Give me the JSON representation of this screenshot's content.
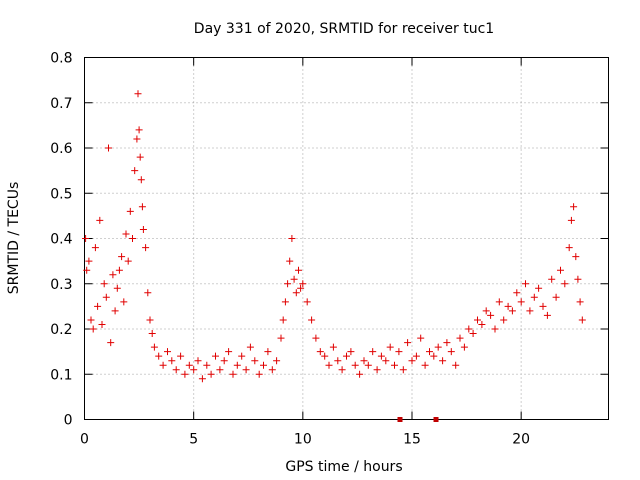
{
  "chart_data": {
    "type": "scatter",
    "title": "Day 331 of 2020, SRMTID for receiver tuc1",
    "xlabel": "GPS time / hours",
    "ylabel": "SRMTID / TECUs",
    "xlim": [
      0,
      24
    ],
    "ylim": [
      0,
      0.8
    ],
    "xticks": [
      "0",
      "5",
      "10",
      "15",
      "20"
    ],
    "yticks": [
      "0",
      "0.1",
      "0.2",
      "0.3",
      "0.4",
      "0.5",
      "0.6",
      "0.7",
      "0.8"
    ],
    "grid": true,
    "marker": "+",
    "color": "#e00000",
    "series": [
      {
        "name": "SRMTID tuc1",
        "x": [
          0.05,
          0.1,
          0.2,
          0.3,
          0.4,
          0.5,
          0.6,
          0.7,
          0.8,
          0.9,
          1.0,
          1.1,
          1.2,
          1.3,
          1.4,
          1.5,
          1.6,
          1.7,
          1.8,
          1.9,
          2.0,
          2.1,
          2.2,
          2.3,
          2.4,
          2.45,
          2.5,
          2.55,
          2.6,
          2.65,
          2.7,
          2.8,
          2.9,
          3.0,
          3.1,
          3.2,
          3.4,
          3.6,
          3.8,
          4.0,
          4.2,
          4.4,
          4.6,
          4.8,
          5.0,
          5.2,
          5.4,
          5.6,
          5.8,
          6.0,
          6.2,
          6.4,
          6.6,
          6.8,
          7.0,
          7.2,
          7.4,
          7.6,
          7.8,
          8.0,
          8.2,
          8.4,
          8.6,
          8.8,
          9.0,
          9.1,
          9.2,
          9.3,
          9.4,
          9.5,
          9.6,
          9.7,
          9.8,
          9.9,
          10.0,
          10.2,
          10.4,
          10.6,
          10.8,
          11.0,
          11.2,
          11.4,
          11.6,
          11.8,
          12.0,
          12.2,
          12.4,
          12.6,
          12.8,
          13.0,
          13.2,
          13.4,
          13.6,
          13.8,
          14.0,
          14.2,
          14.4,
          14.6,
          14.8,
          15.0,
          15.2,
          15.4,
          15.6,
          15.8,
          16.0,
          16.2,
          16.4,
          16.6,
          16.8,
          17.0,
          17.2,
          17.4,
          17.6,
          17.8,
          18.0,
          18.2,
          18.4,
          18.6,
          18.8,
          19.0,
          19.2,
          19.4,
          19.6,
          19.8,
          20.0,
          20.2,
          20.4,
          20.6,
          20.8,
          21.0,
          21.2,
          21.4,
          21.6,
          21.8,
          22.0,
          22.2,
          22.3,
          22.4,
          22.5,
          22.6,
          22.7,
          22.8
        ],
        "y": [
          0.4,
          0.33,
          0.35,
          0.22,
          0.2,
          0.38,
          0.25,
          0.44,
          0.21,
          0.3,
          0.27,
          0.6,
          0.17,
          0.32,
          0.24,
          0.29,
          0.33,
          0.36,
          0.26,
          0.41,
          0.35,
          0.46,
          0.4,
          0.55,
          0.62,
          0.72,
          0.64,
          0.58,
          0.53,
          0.47,
          0.42,
          0.38,
          0.28,
          0.22,
          0.19,
          0.16,
          0.14,
          0.12,
          0.15,
          0.13,
          0.11,
          0.14,
          0.1,
          0.12,
          0.11,
          0.13,
          0.09,
          0.12,
          0.1,
          0.14,
          0.11,
          0.13,
          0.15,
          0.1,
          0.12,
          0.14,
          0.11,
          0.16,
          0.13,
          0.1,
          0.12,
          0.15,
          0.11,
          0.13,
          0.18,
          0.22,
          0.26,
          0.3,
          0.35,
          0.4,
          0.31,
          0.28,
          0.33,
          0.29,
          0.3,
          0.26,
          0.22,
          0.18,
          0.15,
          0.14,
          0.12,
          0.16,
          0.13,
          0.11,
          0.14,
          0.15,
          0.12,
          0.1,
          0.13,
          0.12,
          0.15,
          0.11,
          0.14,
          0.13,
          0.16,
          0.12,
          0.15,
          0.11,
          0.17,
          0.13,
          0.14,
          0.18,
          0.12,
          0.15,
          0.14,
          0.16,
          0.13,
          0.17,
          0.15,
          0.12,
          0.18,
          0.16,
          0.2,
          0.19,
          0.22,
          0.21,
          0.24,
          0.23,
          0.2,
          0.26,
          0.22,
          0.25,
          0.24,
          0.28,
          0.26,
          0.3,
          0.24,
          0.27,
          0.29,
          0.25,
          0.23,
          0.31,
          0.27,
          0.33,
          0.3,
          0.38,
          0.44,
          0.47,
          0.36,
          0.31,
          0.26,
          0.22
        ]
      }
    ],
    "bottom_markers_x": [
      14.45,
      16.1
    ]
  }
}
